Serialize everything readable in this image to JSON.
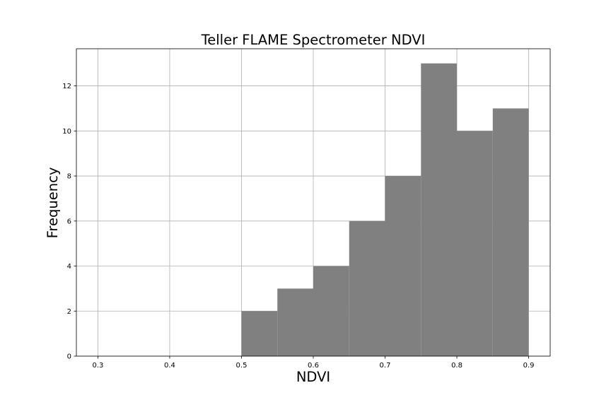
{
  "chart_data": {
    "type": "bar",
    "title": "Teller FLAME Spectrometer NDVI",
    "xlabel": "NDVI",
    "ylabel": "Frequency",
    "bins": [
      {
        "start": 0.5,
        "end": 0.55,
        "count": 2
      },
      {
        "start": 0.55,
        "end": 0.6,
        "count": 3
      },
      {
        "start": 0.6,
        "end": 0.65,
        "count": 4
      },
      {
        "start": 0.65,
        "end": 0.7,
        "count": 6
      },
      {
        "start": 0.7,
        "end": 0.75,
        "count": 8
      },
      {
        "start": 0.75,
        "end": 0.8,
        "count": 13
      },
      {
        "start": 0.8,
        "end": 0.85,
        "count": 10
      },
      {
        "start": 0.85,
        "end": 0.9,
        "count": 11
      }
    ],
    "xlim": [
      0.27,
      0.93
    ],
    "ylim": [
      0,
      13.65
    ],
    "xticks": [
      "0.3",
      "0.4",
      "0.5",
      "0.6",
      "0.7",
      "0.8",
      "0.9"
    ],
    "yticks": [
      "0",
      "2",
      "4",
      "6",
      "8",
      "10",
      "12"
    ],
    "grid": true,
    "bar_color": "#808080"
  }
}
